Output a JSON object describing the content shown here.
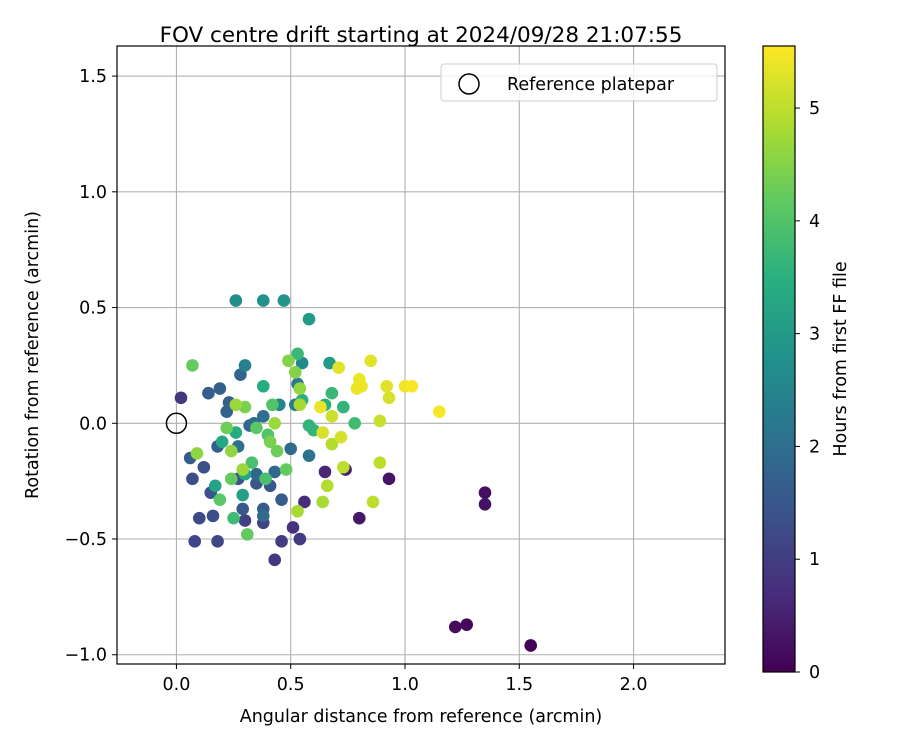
{
  "chart_data": {
    "type": "scatter",
    "title": "FOV centre drift starting at 2024/09/28 21:07:55",
    "xlabel": "Angular distance from reference (arcmin)",
    "ylabel": "Rotation from reference (arcmin)",
    "xlim": [
      -0.26,
      2.4
    ],
    "ylim": [
      -1.04,
      1.63
    ],
    "xticks": [
      0.0,
      0.5,
      1.0,
      1.5,
      2.0
    ],
    "yticks": [
      -1.0,
      -0.5,
      0.0,
      0.5,
      1.0,
      1.5
    ],
    "xtick_labels": [
      "0.0",
      "0.5",
      "1.0",
      "1.5",
      "2.0"
    ],
    "ytick_labels": [
      "−1.0",
      "−0.5",
      "0.0",
      "0.5",
      "1.0",
      "1.5"
    ],
    "grid": true,
    "legend": {
      "position": "top-right",
      "entries": [
        "Reference platepar"
      ]
    },
    "reference": {
      "x": 0.0,
      "y": 0.0
    },
    "colorbar": {
      "label": "Hours from first FF file",
      "colormap": "viridis",
      "range": [
        0,
        5.55
      ],
      "ticks": [
        0,
        1,
        2,
        3,
        4,
        5
      ],
      "tick_labels": [
        "0",
        "1",
        "2",
        "3",
        "4",
        "5"
      ]
    },
    "points": [
      {
        "x": 1.55,
        "y": -0.96,
        "h": 0.05
      },
      {
        "x": 1.27,
        "y": -0.87,
        "h": 0.1
      },
      {
        "x": 1.22,
        "y": -0.88,
        "h": 0.15
      },
      {
        "x": 1.35,
        "y": -0.3,
        "h": 0.2
      },
      {
        "x": 1.35,
        "y": -0.35,
        "h": 0.25
      },
      {
        "x": 0.93,
        "y": -0.24,
        "h": 0.3
      },
      {
        "x": 0.8,
        "y": -0.41,
        "h": 0.35
      },
      {
        "x": 0.74,
        "y": -0.2,
        "h": 0.5
      },
      {
        "x": 0.65,
        "y": -0.21,
        "h": 0.6
      },
      {
        "x": 0.56,
        "y": -0.34,
        "h": 0.7
      },
      {
        "x": 0.51,
        "y": -0.45,
        "h": 0.8
      },
      {
        "x": 0.43,
        "y": -0.59,
        "h": 0.9
      },
      {
        "x": 0.02,
        "y": 0.11,
        "h": 0.9
      },
      {
        "x": 0.54,
        "y": -0.5,
        "h": 0.95
      },
      {
        "x": 0.46,
        "y": -0.51,
        "h": 1.0
      },
      {
        "x": 0.3,
        "y": -0.42,
        "h": 1.05
      },
      {
        "x": 0.38,
        "y": -0.43,
        "h": 1.1
      },
      {
        "x": 0.08,
        "y": -0.51,
        "h": 1.15
      },
      {
        "x": 0.18,
        "y": -0.51,
        "h": 1.2
      },
      {
        "x": 0.1,
        "y": -0.41,
        "h": 1.25
      },
      {
        "x": 0.16,
        "y": -0.4,
        "h": 1.3
      },
      {
        "x": 0.07,
        "y": -0.24,
        "h": 1.3
      },
      {
        "x": 0.12,
        "y": -0.19,
        "h": 1.35
      },
      {
        "x": 0.15,
        "y": -0.3,
        "h": 1.4
      },
      {
        "x": 0.27,
        "y": -0.24,
        "h": 1.45
      },
      {
        "x": 0.35,
        "y": -0.26,
        "h": 1.5
      },
      {
        "x": 0.41,
        "y": -0.27,
        "h": 1.5
      },
      {
        "x": 0.29,
        "y": -0.37,
        "h": 1.55
      },
      {
        "x": 0.38,
        "y": -0.37,
        "h": 1.6
      },
      {
        "x": 0.46,
        "y": -0.33,
        "h": 1.6
      },
      {
        "x": 0.06,
        "y": -0.15,
        "h": 1.6
      },
      {
        "x": 0.18,
        "y": -0.1,
        "h": 1.65
      },
      {
        "x": 0.14,
        "y": 0.13,
        "h": 1.65
      },
      {
        "x": 0.19,
        "y": 0.15,
        "h": 1.7
      },
      {
        "x": 0.23,
        "y": 0.09,
        "h": 1.7
      },
      {
        "x": 0.22,
        "y": 0.05,
        "h": 1.75
      },
      {
        "x": 0.28,
        "y": 0.21,
        "h": 1.8
      },
      {
        "x": 0.32,
        "y": -0.01,
        "h": 1.8
      },
      {
        "x": 0.35,
        "y": -0.22,
        "h": 1.85
      },
      {
        "x": 0.43,
        "y": -0.21,
        "h": 1.85
      },
      {
        "x": 0.38,
        "y": -0.4,
        "h": 1.9
      },
      {
        "x": 0.5,
        "y": -0.11,
        "h": 1.9
      },
      {
        "x": 0.34,
        "y": 0.0,
        "h": 1.95
      },
      {
        "x": 0.38,
        "y": 0.03,
        "h": 2.0
      },
      {
        "x": 0.27,
        "y": -0.1,
        "h": 2.05
      },
      {
        "x": 0.58,
        "y": -0.14,
        "h": 2.1
      },
      {
        "x": 0.53,
        "y": 0.17,
        "h": 2.2
      },
      {
        "x": 0.52,
        "y": 0.08,
        "h": 2.3
      },
      {
        "x": 0.3,
        "y": 0.25,
        "h": 2.4
      },
      {
        "x": 0.45,
        "y": 0.08,
        "h": 2.5
      },
      {
        "x": 0.55,
        "y": 0.26,
        "h": 2.6
      },
      {
        "x": 0.26,
        "y": 0.53,
        "h": 2.7
      },
      {
        "x": 0.38,
        "y": 0.53,
        "h": 2.8
      },
      {
        "x": 0.47,
        "y": 0.53,
        "h": 2.9
      },
      {
        "x": 0.58,
        "y": 0.45,
        "h": 3.0
      },
      {
        "x": 0.67,
        "y": 0.26,
        "h": 3.0
      },
      {
        "x": 0.29,
        "y": -0.31,
        "h": 3.1
      },
      {
        "x": 0.17,
        "y": -0.27,
        "h": 3.2
      },
      {
        "x": 0.3,
        "y": -0.22,
        "h": 3.3
      },
      {
        "x": 0.2,
        "y": -0.08,
        "h": 3.3
      },
      {
        "x": 0.26,
        "y": -0.04,
        "h": 3.4
      },
      {
        "x": 0.38,
        "y": 0.16,
        "h": 3.4
      },
      {
        "x": 0.55,
        "y": 0.1,
        "h": 3.5
      },
      {
        "x": 0.65,
        "y": 0.08,
        "h": 3.5
      },
      {
        "x": 0.73,
        "y": 0.07,
        "h": 3.6
      },
      {
        "x": 0.58,
        "y": -0.01,
        "h": 3.6
      },
      {
        "x": 0.6,
        "y": -0.03,
        "h": 3.6
      },
      {
        "x": 0.68,
        "y": 0.13,
        "h": 3.7
      },
      {
        "x": 0.53,
        "y": 0.3,
        "h": 3.7
      },
      {
        "x": 0.78,
        "y": 0.0,
        "h": 3.8
      },
      {
        "x": 0.25,
        "y": -0.41,
        "h": 3.8
      },
      {
        "x": 0.33,
        "y": -0.17,
        "h": 3.9
      },
      {
        "x": 0.39,
        "y": -0.24,
        "h": 3.9
      },
      {
        "x": 0.42,
        "y": 0.08,
        "h": 4.0
      },
      {
        "x": 0.4,
        "y": -0.05,
        "h": 4.0
      },
      {
        "x": 0.35,
        "y": -0.02,
        "h": 4.1
      },
      {
        "x": 0.19,
        "y": -0.33,
        "h": 4.1
      },
      {
        "x": 0.24,
        "y": -0.24,
        "h": 4.2
      },
      {
        "x": 0.31,
        "y": -0.48,
        "h": 4.2
      },
      {
        "x": 0.48,
        "y": -0.2,
        "h": 4.2
      },
      {
        "x": 0.07,
        "y": 0.25,
        "h": 4.2
      },
      {
        "x": 0.44,
        "y": -0.12,
        "h": 4.3
      },
      {
        "x": 0.22,
        "y": -0.02,
        "h": 4.3
      },
      {
        "x": 0.41,
        "y": -0.08,
        "h": 4.4
      },
      {
        "x": 0.3,
        "y": 0.07,
        "h": 4.4
      },
      {
        "x": 0.49,
        "y": 0.27,
        "h": 4.5
      },
      {
        "x": 0.52,
        "y": 0.22,
        "h": 4.5
      },
      {
        "x": 0.54,
        "y": 0.15,
        "h": 4.6
      },
      {
        "x": 0.09,
        "y": -0.13,
        "h": 4.6
      },
      {
        "x": 0.24,
        "y": -0.12,
        "h": 4.6
      },
      {
        "x": 0.26,
        "y": 0.08,
        "h": 4.7
      },
      {
        "x": 0.29,
        "y": -0.2,
        "h": 4.7
      },
      {
        "x": 0.43,
        "y": 0.0,
        "h": 4.7
      },
      {
        "x": 0.53,
        "y": -0.38,
        "h": 4.8
      },
      {
        "x": 0.54,
        "y": 0.08,
        "h": 4.8
      },
      {
        "x": 0.64,
        "y": -0.34,
        "h": 4.8
      },
      {
        "x": 0.66,
        "y": -0.27,
        "h": 4.9
      },
      {
        "x": 0.68,
        "y": -0.09,
        "h": 4.9
      },
      {
        "x": 0.73,
        "y": -0.19,
        "h": 5.0
      },
      {
        "x": 0.86,
        "y": -0.34,
        "h": 5.0
      },
      {
        "x": 0.89,
        "y": -0.17,
        "h": 5.0
      },
      {
        "x": 0.89,
        "y": 0.01,
        "h": 5.1
      },
      {
        "x": 0.68,
        "y": 0.03,
        "h": 5.1
      },
      {
        "x": 0.72,
        "y": -0.06,
        "h": 5.2
      },
      {
        "x": 0.64,
        "y": -0.04,
        "h": 5.2
      },
      {
        "x": 0.93,
        "y": 0.11,
        "h": 5.2
      },
      {
        "x": 0.92,
        "y": 0.16,
        "h": 5.3
      },
      {
        "x": 0.85,
        "y": 0.27,
        "h": 5.3
      },
      {
        "x": 0.71,
        "y": 0.24,
        "h": 5.3
      },
      {
        "x": 0.81,
        "y": 0.16,
        "h": 5.4
      },
      {
        "x": 0.79,
        "y": 0.15,
        "h": 5.4
      },
      {
        "x": 0.8,
        "y": 0.19,
        "h": 5.4
      },
      {
        "x": 0.63,
        "y": 0.07,
        "h": 5.4
      },
      {
        "x": 1.0,
        "y": 0.16,
        "h": 5.45
      },
      {
        "x": 1.03,
        "y": 0.16,
        "h": 5.5
      },
      {
        "x": 1.15,
        "y": 0.05,
        "h": 5.5
      }
    ]
  }
}
